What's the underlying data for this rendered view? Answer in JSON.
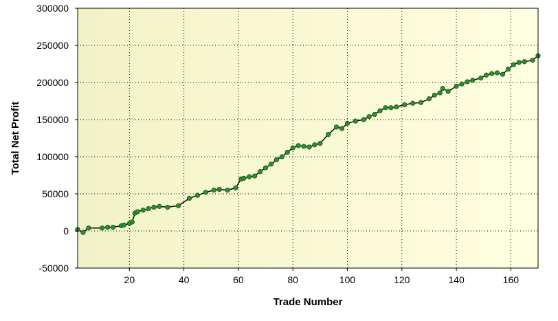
{
  "chart_data": {
    "type": "line",
    "title": "",
    "xlabel": "Trade Number",
    "ylabel": "Total Net Profit",
    "xlim": [
      1,
      170
    ],
    "ylim": [
      -50000,
      300000
    ],
    "x_ticks": [
      20,
      40,
      60,
      80,
      100,
      120,
      140,
      160
    ],
    "y_ticks": [
      -50000,
      0,
      50000,
      100000,
      150000,
      200000,
      250000,
      300000
    ],
    "x_tick_labels": [
      "20",
      "40",
      "60",
      "80",
      "100",
      "120",
      "140",
      "160"
    ],
    "y_tick_labels": [
      "-50000",
      "0",
      "50000",
      "100000",
      "150000",
      "200000",
      "250000",
      "300000"
    ],
    "grid": true,
    "legend": "none",
    "colors": {
      "line": "#000000",
      "marker": "#2f8f2f",
      "marker_edge": "#0f4f0f",
      "background_start": "#f2f2c8",
      "background_end": "#ffffe2",
      "grid": "#000000"
    },
    "series": [
      {
        "x": [
          1,
          3,
          5,
          10,
          12,
          14,
          17,
          18,
          20,
          21,
          22,
          23,
          25,
          27,
          29,
          31,
          34,
          38,
          42,
          45,
          48,
          51,
          53,
          56,
          59,
          61,
          62,
          64,
          66,
          68,
          70,
          72,
          74,
          76,
          78,
          80,
          82,
          84,
          86,
          88,
          90,
          93,
          96,
          98,
          100,
          103,
          106,
          108,
          110,
          112,
          114,
          116,
          118,
          121,
          124,
          127,
          130,
          132,
          134,
          135,
          137,
          140,
          142,
          144,
          146,
          149,
          151,
          153,
          155,
          157,
          159,
          161,
          163,
          165,
          168,
          170
        ],
        "values": [
          2000,
          -2000,
          4000,
          4000,
          5000,
          5000,
          7000,
          8000,
          10000,
          12000,
          24000,
          26000,
          28000,
          30000,
          32000,
          33000,
          32000,
          34000,
          44000,
          48000,
          52000,
          55000,
          56000,
          55000,
          58000,
          70000,
          71000,
          73000,
          74000,
          80000,
          85000,
          90000,
          96000,
          100000,
          106000,
          112000,
          115000,
          114000,
          113000,
          116000,
          118000,
          130000,
          140000,
          138000,
          145000,
          148000,
          150000,
          154000,
          157000,
          162000,
          166000,
          166000,
          167000,
          170000,
          172000,
          173000,
          178000,
          183000,
          186000,
          192000,
          188000,
          195000,
          198000,
          201000,
          203000,
          206000,
          210000,
          212000,
          213000,
          211000,
          218000,
          224000,
          227000,
          228000,
          230000,
          236000
        ]
      }
    ]
  }
}
